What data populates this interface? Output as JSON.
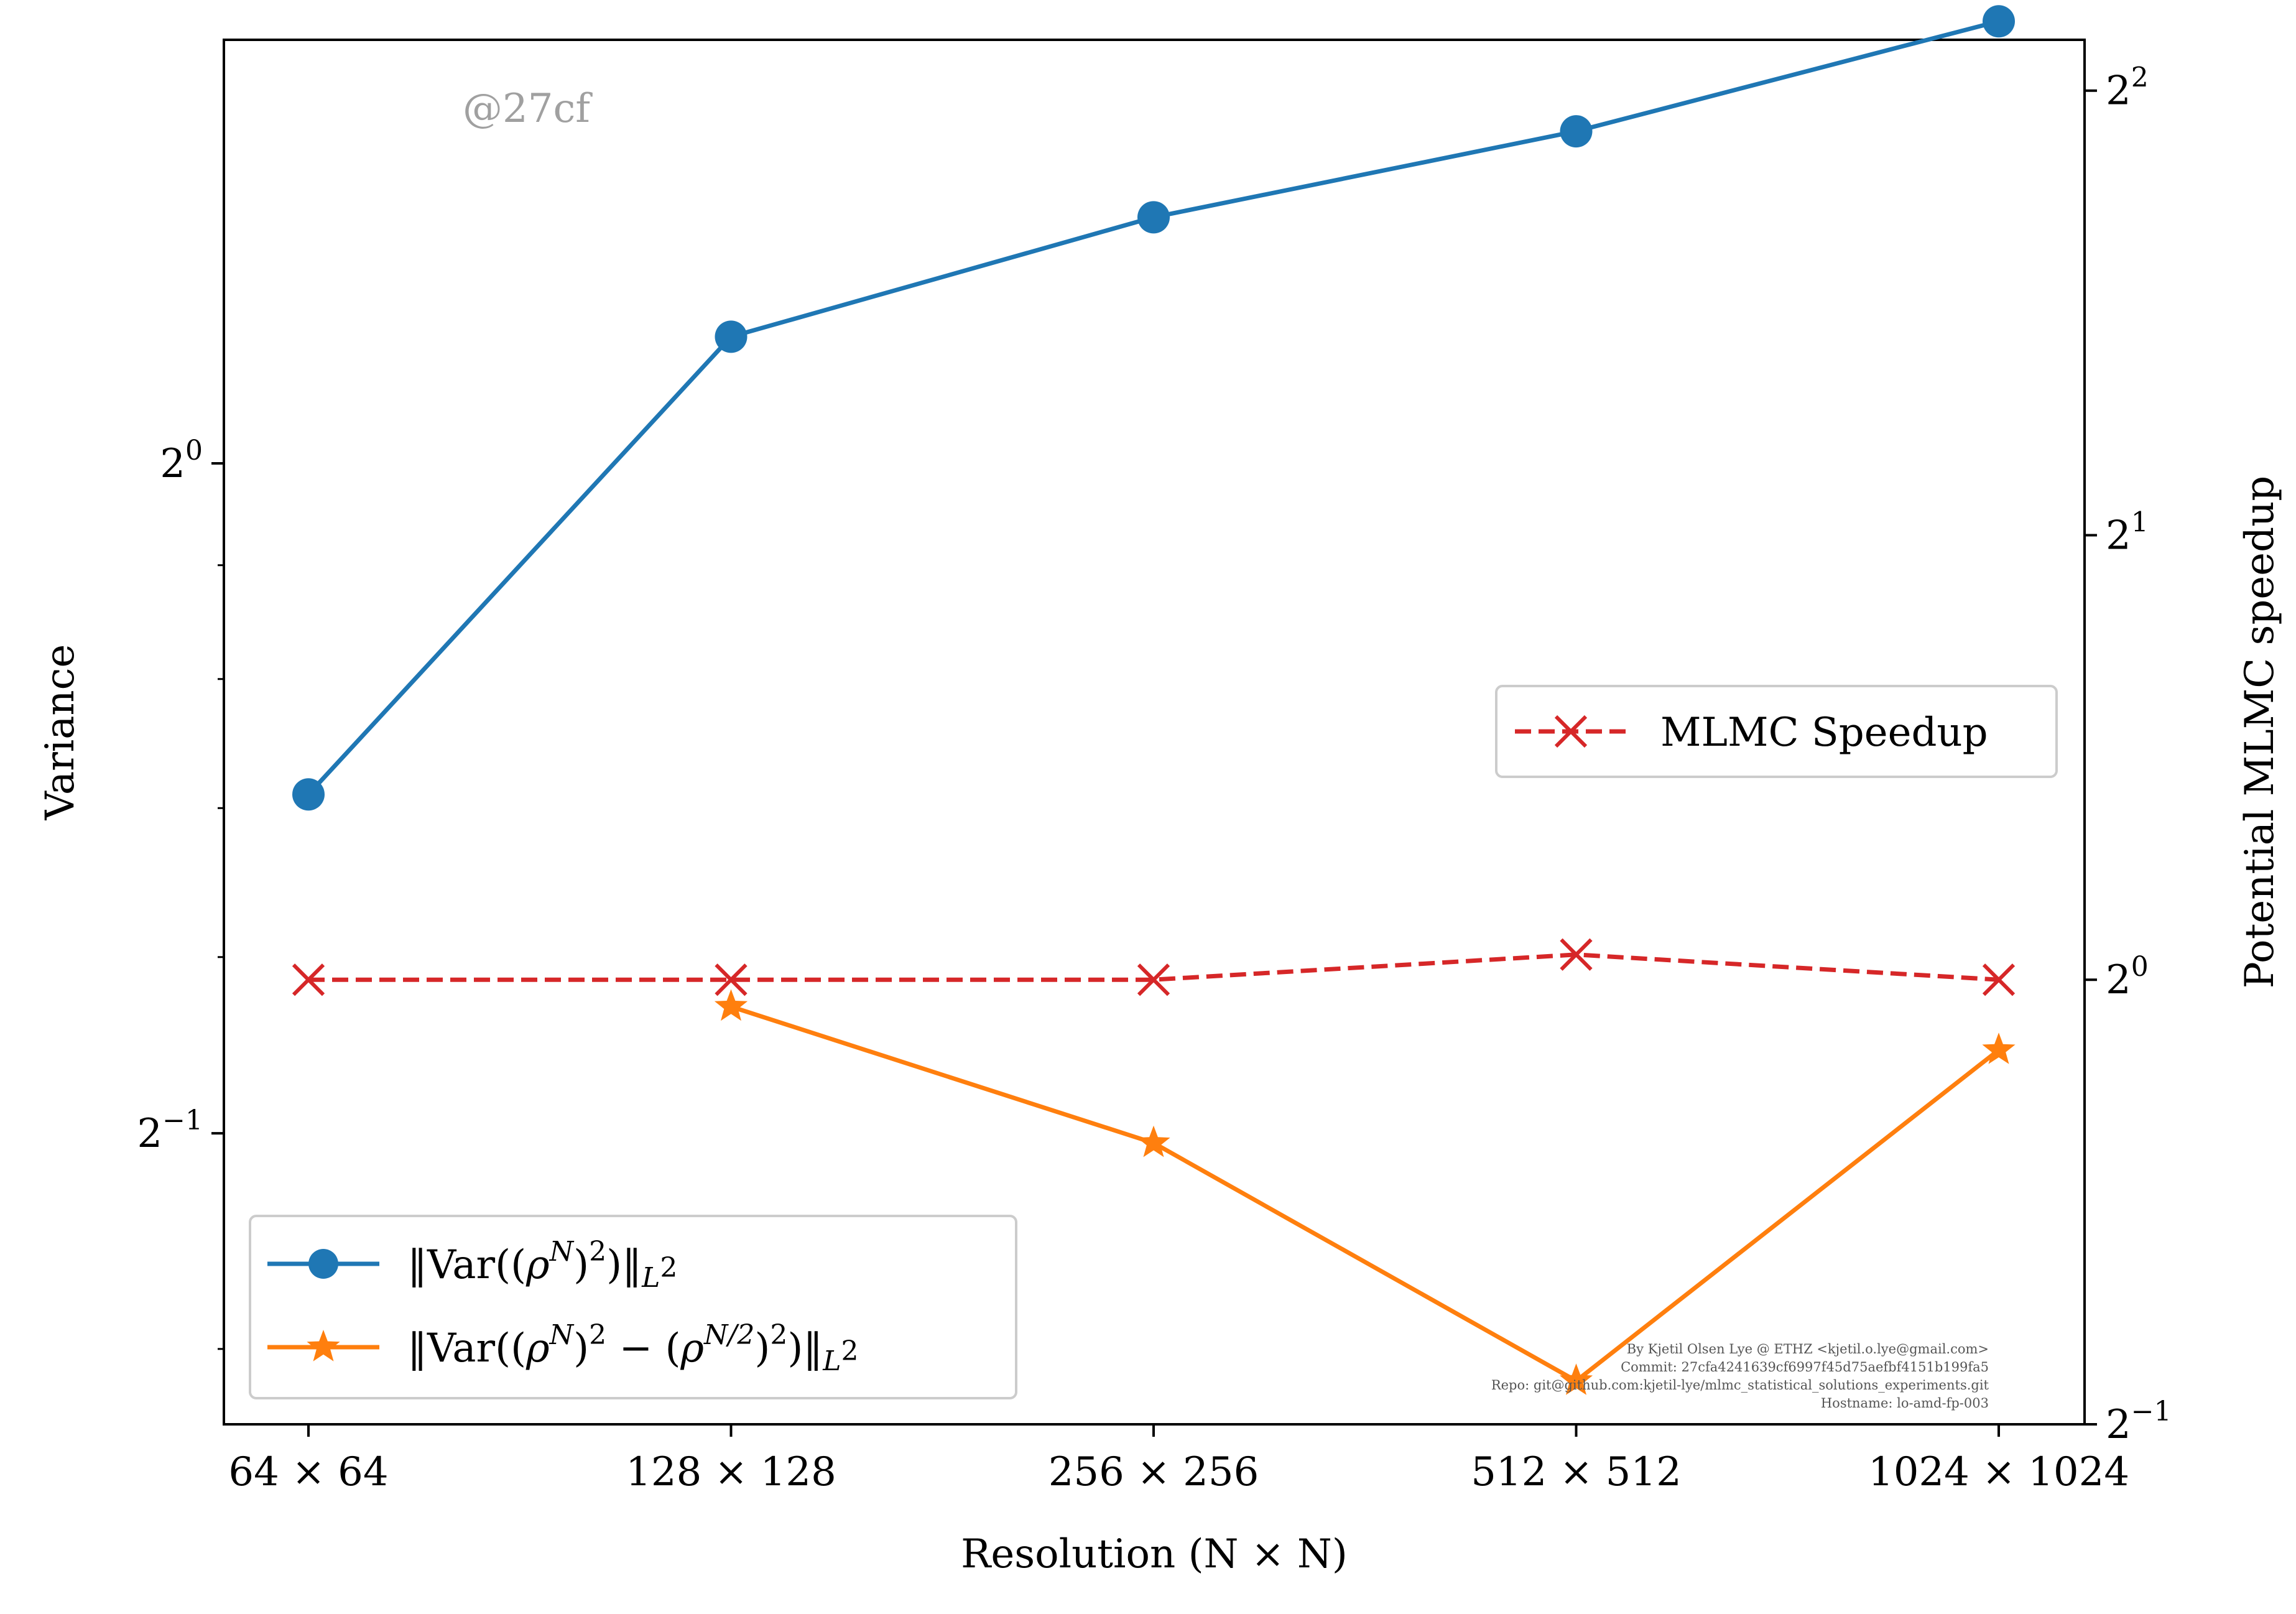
{
  "chart_data": {
    "type": "line",
    "categories": [
      "64 × 64",
      "128 × 128",
      "256 × 256",
      "512 × 512",
      "1024 × 1024"
    ],
    "xlabel": "Resolution (N × N)",
    "ylabel_left": "Variance",
    "ylabel_right": "Potential MLMC speedup",
    "left_axis": {
      "scale": "log2",
      "ylim": [
        0.37,
        1.55
      ],
      "ticks": [
        {
          "value": 1,
          "base": "2",
          "exp": "0"
        },
        {
          "value": 0.5,
          "base": "2",
          "exp": "−1"
        }
      ]
    },
    "right_axis": {
      "scale": "log2",
      "ylim": [
        0.5,
        4.33
      ],
      "ticks": [
        {
          "value": 0.5,
          "base": "2",
          "exp": "−1"
        },
        {
          "value": 1,
          "base": "2",
          "exp": "0"
        },
        {
          "value": 2,
          "base": "2",
          "exp": "1"
        },
        {
          "value": 4,
          "base": "2",
          "exp": "2"
        }
      ]
    },
    "series": [
      {
        "name": "‖Var((ρ^N)^2)‖_{L^2}",
        "axis": "left",
        "color": "#1f77b4",
        "marker": "circle",
        "linestyle": "solid",
        "values": [
          0.71,
          1.14,
          1.29,
          1.41,
          1.58
        ]
      },
      {
        "name": "‖Var((ρ^N)^2 − (ρ^{N/2})^2)‖_{L^2}",
        "axis": "left",
        "color": "#ff7f0e",
        "marker": "star",
        "linestyle": "solid",
        "values": [
          null,
          0.57,
          0.495,
          0.387,
          0.545
        ]
      },
      {
        "name": "MLMC Speedup",
        "axis": "right",
        "color": "#d62728",
        "marker": "x",
        "linestyle": "dashed",
        "values": [
          1.0,
          1.0,
          1.0,
          1.04,
          1.0
        ]
      }
    ],
    "legend_left_placement": "lower-left",
    "legend_right_placement": "center-right",
    "grid": false
  },
  "watermark": "@27cf",
  "metadata_lines": [
    "By Kjetil Olsen Lye @ ETHZ <kjetil.o.lye@gmail.com>",
    "Commit: 27cfa4241639cf6997f45d75aefbf4151b199fa5",
    "Repo: git@github.com:kjetil-lye/mlmc_statistical_solutions_experiments.git",
    "Hostname: lo-amd-fp-003"
  ]
}
